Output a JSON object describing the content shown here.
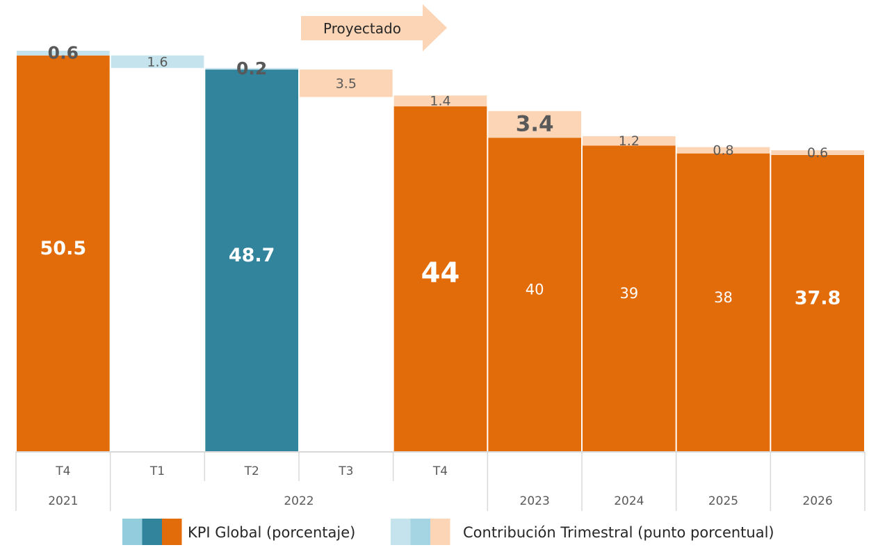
{
  "chart_data": {
    "type": "bar",
    "subtype": "waterfall",
    "categories": [
      {
        "quarter": "T4",
        "year": "2021"
      },
      {
        "quarter": "T1",
        "year": "2022"
      },
      {
        "quarter": "T2",
        "year": "2022"
      },
      {
        "quarter": "T3",
        "year": "2022"
      },
      {
        "quarter": "T4",
        "year": "2022"
      },
      {
        "quarter": "",
        "year": "2023"
      },
      {
        "quarter": "",
        "year": "2024"
      },
      {
        "quarter": "",
        "year": "2025"
      },
      {
        "quarter": "",
        "year": "2026"
      }
    ],
    "year_groups": [
      {
        "label": "2021",
        "from": 0,
        "to": 0
      },
      {
        "label": "2022",
        "from": 1,
        "to": 4
      },
      {
        "label": "2023",
        "from": 5,
        "to": 5
      },
      {
        "label": "2024",
        "from": 6,
        "to": 6
      },
      {
        "label": "2025",
        "from": 7,
        "to": 7
      },
      {
        "label": "2026",
        "from": 8,
        "to": 8
      }
    ],
    "kpi_series": {
      "name": "KPI Global (porcentaje)",
      "values": [
        50.5,
        null,
        48.7,
        null,
        44,
        40,
        39,
        38,
        37.8
      ],
      "labels": [
        "50.5",
        "",
        "48.7",
        "",
        "44",
        "40",
        "39",
        "38",
        "37.8"
      ],
      "label_emphasis": [
        "bold",
        "",
        "bold",
        "",
        "bold-large",
        "normal",
        "normal",
        "normal",
        "bold"
      ],
      "colors": [
        "#e36c0a",
        "",
        "#31849b",
        "",
        "#e36c0a",
        "#e36c0a",
        "#e36c0a",
        "#e36c0a",
        "#e36c0a"
      ]
    },
    "contribution_series": {
      "name": "Contribución Trimestral (punto porcentual)",
      "values": [
        0.6,
        1.6,
        0.2,
        3.5,
        1.4,
        3.4,
        1.2,
        0.8,
        0.6
      ],
      "labels": [
        "0.6",
        "1.6",
        "0.2",
        "3.5",
        "1.4",
        "3.4",
        "1.2",
        "0.8",
        "0.6"
      ],
      "label_emphasis": [
        "bold",
        "normal",
        "bold",
        "normal",
        "normal",
        "bold",
        "normal",
        "normal",
        "normal"
      ],
      "colors": [
        "#c5e3ec",
        "#c5e3ec",
        "#c5e3ec",
        "#fbd5b5",
        "#fbd5b5",
        "#fbd5b5",
        "#fbd5b5",
        "#fbd5b5",
        "#fbd5b5"
      ]
    },
    "ylim": [
      0,
      51.1
    ],
    "projection_arrow": {
      "label": "Proyectado",
      "color": "#fbd5b5"
    },
    "legend": {
      "placement": "bottom",
      "items": [
        {
          "label": "KPI Global (porcentaje)",
          "swatches": [
            "#93cddd",
            "#31849b",
            "#e36c0a"
          ]
        },
        {
          "label": "Contribución Trimestral (punto porcentual)",
          "swatches": [
            "#c5e3ec",
            "#a5d4e3",
            "#fbd5b5"
          ]
        }
      ]
    },
    "colors": {
      "text_dark": "#595959",
      "label_light": "#ffffff",
      "axis": "#d9d9d9"
    }
  }
}
